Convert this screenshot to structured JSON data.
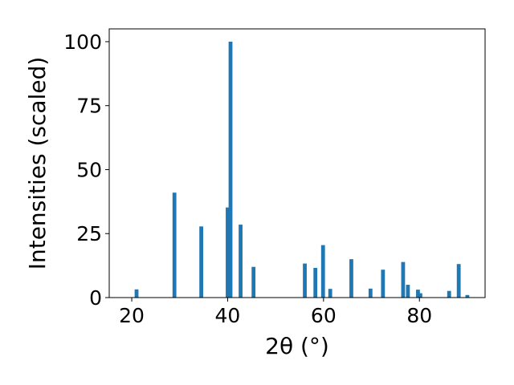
{
  "chart_data": {
    "type": "bar",
    "title": "",
    "xlabel": "2θ (°)",
    "ylabel": "Intensities (scaled)",
    "xlim": [
      15.3,
      93.7
    ],
    "ylim": [
      0,
      105
    ],
    "xticks": [
      20,
      40,
      60,
      80
    ],
    "yticks": [
      0,
      25,
      50,
      75,
      100
    ],
    "grid": false,
    "bar_width": 0.8,
    "bar_color": "#1f77b4",
    "x": [
      21.0,
      28.9,
      34.5,
      40.0,
      40.6,
      42.7,
      45.4,
      56.1,
      58.3,
      59.9,
      61.4,
      65.8,
      69.8,
      72.4,
      76.6,
      77.6,
      79.7,
      80.2,
      86.2,
      88.2,
      90.0
    ],
    "values": [
      3.2,
      41.0,
      27.8,
      35.2,
      100.0,
      28.5,
      12.0,
      13.3,
      11.6,
      20.5,
      3.4,
      15.0,
      3.5,
      10.9,
      13.9,
      5.0,
      3.1,
      1.7,
      2.6,
      13.1,
      1.0
    ]
  }
}
